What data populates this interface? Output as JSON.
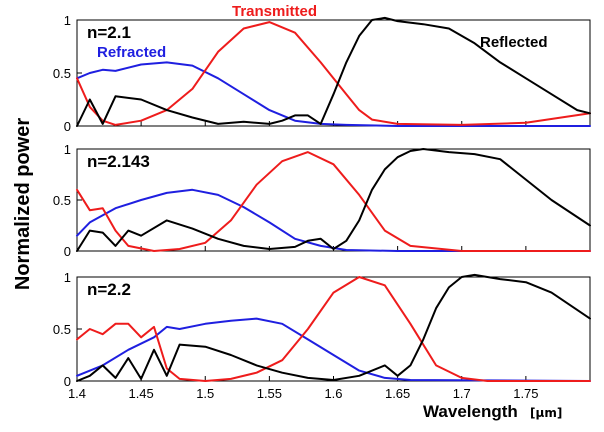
{
  "colors": {
    "refracted": "#1f1fe0",
    "transmitted": "#ee1c1c",
    "reflected": "#000000",
    "axis": "#000000"
  },
  "figure": {
    "ylabel": "Normalized power",
    "xlabel": "Wavelength",
    "xunit": "[μm]"
  },
  "chart_data": [
    {
      "type": "line",
      "panel_label": "n=2.1",
      "xlim": [
        1.4,
        1.8
      ],
      "ylim": [
        0,
        1
      ],
      "x_ticks": [
        "1.4",
        "1.45",
        "1.5",
        "1.55",
        "1.6",
        "1.65",
        "1.7",
        "1.75"
      ],
      "y_ticks": [
        "0",
        "0.5",
        "1"
      ],
      "annotations": [
        "Refracted",
        "Transmitted",
        "Reflected"
      ],
      "series": [
        {
          "name": "Refracted",
          "color_key": "refracted",
          "x": [
            1.4,
            1.41,
            1.42,
            1.43,
            1.45,
            1.47,
            1.49,
            1.51,
            1.53,
            1.55,
            1.57,
            1.59,
            1.61,
            1.65,
            1.8
          ],
          "y": [
            0.45,
            0.5,
            0.53,
            0.52,
            0.58,
            0.6,
            0.57,
            0.45,
            0.3,
            0.15,
            0.05,
            0.02,
            0.01,
            0,
            0
          ]
        },
        {
          "name": "Transmitted",
          "color_key": "transmitted",
          "x": [
            1.4,
            1.41,
            1.42,
            1.43,
            1.45,
            1.47,
            1.49,
            1.51,
            1.53,
            1.55,
            1.57,
            1.59,
            1.61,
            1.62,
            1.63,
            1.65,
            1.7,
            1.75,
            1.8
          ],
          "y": [
            0.45,
            0.18,
            0.05,
            0.01,
            0.05,
            0.15,
            0.35,
            0.7,
            0.92,
            0.98,
            0.88,
            0.6,
            0.3,
            0.15,
            0.06,
            0.02,
            0.01,
            0.03,
            0.12
          ]
        },
        {
          "name": "Reflected",
          "color_key": "reflected",
          "x": [
            1.4,
            1.41,
            1.42,
            1.43,
            1.45,
            1.47,
            1.49,
            1.51,
            1.53,
            1.55,
            1.56,
            1.57,
            1.58,
            1.59,
            1.6,
            1.61,
            1.62,
            1.63,
            1.64,
            1.65,
            1.67,
            1.69,
            1.71,
            1.73,
            1.75,
            1.77,
            1.79,
            1.8
          ],
          "y": [
            0.0,
            0.25,
            0.02,
            0.28,
            0.25,
            0.15,
            0.08,
            0.02,
            0.04,
            0.02,
            0.05,
            0.1,
            0.1,
            0.02,
            0.3,
            0.6,
            0.85,
            1.0,
            1.02,
            0.99,
            0.96,
            0.92,
            0.78,
            0.6,
            0.45,
            0.3,
            0.15,
            0.12
          ]
        }
      ]
    },
    {
      "type": "line",
      "panel_label": "n=2.143",
      "xlim": [
        1.4,
        1.8
      ],
      "ylim": [
        0,
        1
      ],
      "x_ticks": [
        "1.4",
        "1.45",
        "1.5",
        "1.55",
        "1.6",
        "1.65",
        "1.7",
        "1.75"
      ],
      "y_ticks": [
        "0",
        "0.5",
        "1"
      ],
      "series": [
        {
          "name": "Refracted",
          "color_key": "refracted",
          "x": [
            1.4,
            1.41,
            1.43,
            1.45,
            1.47,
            1.49,
            1.51,
            1.53,
            1.55,
            1.57,
            1.59,
            1.61,
            1.65,
            1.8
          ],
          "y": [
            0.15,
            0.28,
            0.42,
            0.5,
            0.57,
            0.6,
            0.55,
            0.43,
            0.28,
            0.12,
            0.05,
            0.01,
            0,
            0
          ]
        },
        {
          "name": "Transmitted",
          "color_key": "transmitted",
          "x": [
            1.4,
            1.41,
            1.42,
            1.43,
            1.44,
            1.46,
            1.48,
            1.5,
            1.52,
            1.54,
            1.56,
            1.58,
            1.6,
            1.62,
            1.64,
            1.66,
            1.7,
            1.75,
            1.8
          ],
          "y": [
            0.6,
            0.4,
            0.42,
            0.2,
            0.05,
            0.0,
            0.02,
            0.08,
            0.3,
            0.65,
            0.88,
            0.97,
            0.85,
            0.55,
            0.2,
            0.05,
            0.0,
            0.0,
            0.0
          ]
        },
        {
          "name": "Reflected",
          "color_key": "reflected",
          "x": [
            1.4,
            1.41,
            1.42,
            1.43,
            1.44,
            1.45,
            1.47,
            1.49,
            1.51,
            1.53,
            1.55,
            1.57,
            1.58,
            1.59,
            1.6,
            1.61,
            1.62,
            1.63,
            1.64,
            1.65,
            1.66,
            1.67,
            1.69,
            1.71,
            1.73,
            1.75,
            1.77,
            1.8
          ],
          "y": [
            0.0,
            0.2,
            0.18,
            0.05,
            0.2,
            0.15,
            0.3,
            0.22,
            0.12,
            0.05,
            0.02,
            0.04,
            0.1,
            0.12,
            0.02,
            0.1,
            0.3,
            0.6,
            0.8,
            0.92,
            0.98,
            1.0,
            0.97,
            0.95,
            0.9,
            0.7,
            0.5,
            0.25
          ]
        }
      ]
    },
    {
      "type": "line",
      "panel_label": "n=2.2",
      "xlim": [
        1.4,
        1.8
      ],
      "ylim": [
        0,
        1
      ],
      "x_ticks": [
        "1.4",
        "1.45",
        "1.5",
        "1.55",
        "1.6",
        "1.65",
        "1.7",
        "1.75"
      ],
      "y_ticks": [
        "0",
        "0.5",
        "1"
      ],
      "series": [
        {
          "name": "Refracted",
          "color_key": "refracted",
          "x": [
            1.4,
            1.42,
            1.44,
            1.46,
            1.47,
            1.48,
            1.5,
            1.52,
            1.54,
            1.56,
            1.58,
            1.6,
            1.62,
            1.64,
            1.66,
            1.8
          ],
          "y": [
            0.05,
            0.15,
            0.3,
            0.42,
            0.52,
            0.5,
            0.55,
            0.58,
            0.6,
            0.55,
            0.4,
            0.25,
            0.1,
            0.03,
            0.01,
            0
          ]
        },
        {
          "name": "Transmitted",
          "color_key": "transmitted",
          "x": [
            1.4,
            1.41,
            1.42,
            1.43,
            1.44,
            1.45,
            1.46,
            1.47,
            1.48,
            1.5,
            1.52,
            1.54,
            1.56,
            1.58,
            1.6,
            1.62,
            1.64,
            1.66,
            1.68,
            1.7,
            1.72,
            1.8
          ],
          "y": [
            0.4,
            0.5,
            0.45,
            0.55,
            0.55,
            0.42,
            0.52,
            0.12,
            0.02,
            0.0,
            0.02,
            0.08,
            0.2,
            0.5,
            0.85,
            1.0,
            0.92,
            0.55,
            0.15,
            0.03,
            0.0,
            0.0
          ]
        },
        {
          "name": "Reflected",
          "color_key": "reflected",
          "x": [
            1.4,
            1.41,
            1.42,
            1.43,
            1.44,
            1.45,
            1.46,
            1.47,
            1.48,
            1.5,
            1.52,
            1.54,
            1.56,
            1.58,
            1.6,
            1.62,
            1.64,
            1.65,
            1.66,
            1.67,
            1.68,
            1.69,
            1.7,
            1.71,
            1.73,
            1.75,
            1.77,
            1.8
          ],
          "y": [
            0.0,
            0.05,
            0.15,
            0.03,
            0.22,
            0.02,
            0.3,
            0.05,
            0.35,
            0.33,
            0.25,
            0.15,
            0.08,
            0.03,
            0.01,
            0.05,
            0.15,
            0.05,
            0.15,
            0.4,
            0.7,
            0.9,
            1.0,
            1.02,
            0.98,
            0.95,
            0.85,
            0.6
          ]
        }
      ]
    }
  ]
}
